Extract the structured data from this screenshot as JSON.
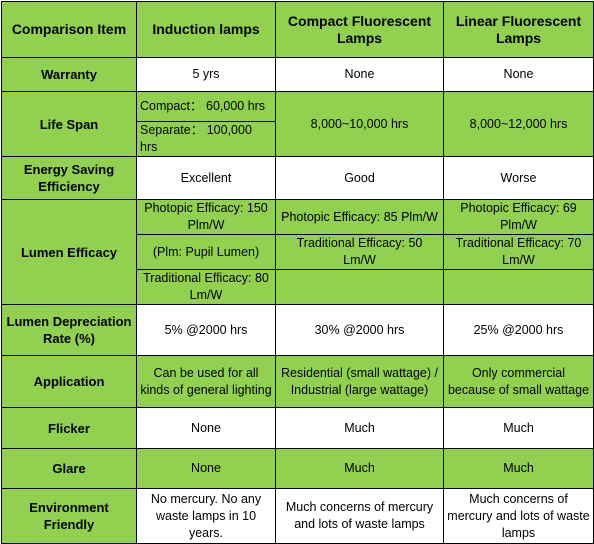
{
  "table": {
    "header": [
      "Comparison Item",
      "Induction lamps",
      "Compact Fluorescent Lamps",
      "Linear Fluorescent Lamps"
    ],
    "rows": [
      [
        "Warranty",
        "5 yrs",
        "None",
        "None"
      ],
      [
        "Life Span",
        [
          "Compact：  60,000 hrs",
          "Separate：  100,000 hrs"
        ],
        "8,000~10,000 hrs",
        "8,000~12,000 hrs"
      ],
      [
        "Energy Saving Efficiency",
        "Excellent",
        "Good",
        "Worse"
      ],
      [
        "Lumen Efficacy",
        [
          "Photopic Efficacy: 150 Plm/W",
          "(Plm: Pupil Lumen)",
          "Traditional Efficacy: 80 Lm/W"
        ],
        [
          "Photopic Efficacy: 85 Plm/W",
          "Traditional Efficacy: 50 Lm/W"
        ],
        [
          "Photopic Efficacy: 69 Plm/W",
          "Traditional Efficacy: 70 Lm/W"
        ]
      ],
      [
        "Lumen Depreciation Rate (%)",
        "5% @2000 hrs",
        "30% @2000 hrs",
        "25% @2000 hrs"
      ],
      [
        "Application",
        "Can be used for all kinds of general lighting",
        "Residential (small wattage) / Industrial (large wattage)",
        "Only commercial because of small wattage"
      ],
      [
        "Flicker",
        "None",
        "Much",
        "Much"
      ],
      [
        "Glare",
        "None",
        "Much",
        "Much"
      ],
      [
        "Environment Friendly",
        "No mercury. No any waste lamps in 10 years.",
        "Much concerns of mercury and lots of waste lamps",
        "Much concerns of mercury and lots of waste lamps"
      ]
    ]
  }
}
